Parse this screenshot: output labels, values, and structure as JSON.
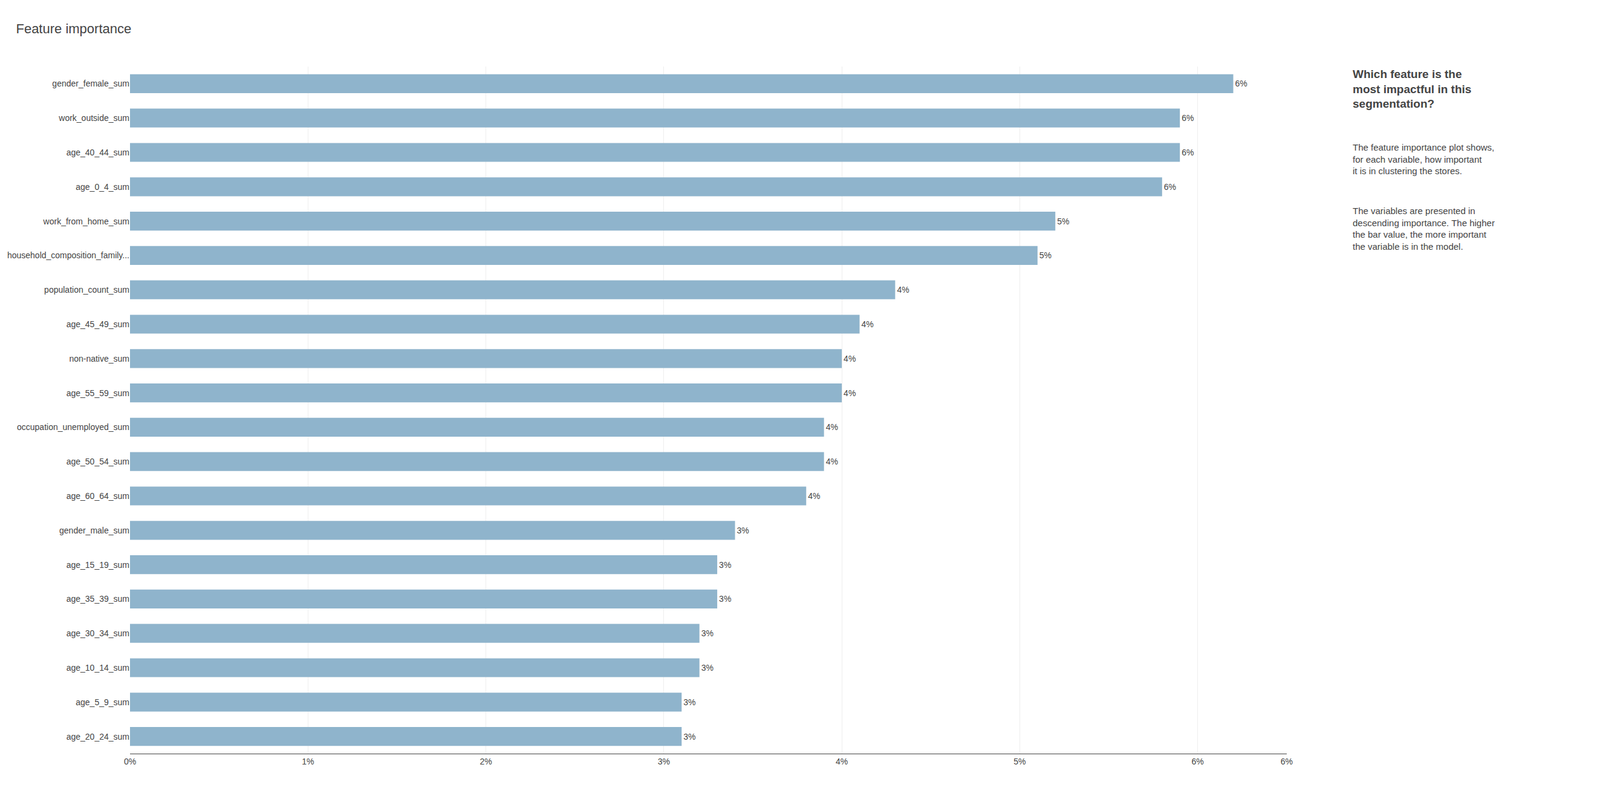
{
  "chart_data": {
    "type": "bar",
    "orientation": "horizontal",
    "title": "Feature importance",
    "categories": [
      "gender_female_sum",
      "work_outside_sum",
      "age_40_44_sum",
      "age_0_4_sum",
      "work_from_home_sum",
      "household_composition_family...",
      "population_count_sum",
      "age_45_49_sum",
      "non-native_sum",
      "age_55_59_sum",
      "occupation_unemployed_sum",
      "age_50_54_sum",
      "age_60_64_sum",
      "gender_male_sum",
      "age_15_19_sum",
      "age_35_39_sum",
      "age_30_34_sum",
      "age_10_14_sum",
      "age_5_9_sum",
      "age_20_24_sum"
    ],
    "values": [
      0.062,
      0.059,
      0.059,
      0.058,
      0.052,
      0.051,
      0.043,
      0.041,
      0.04,
      0.04,
      0.039,
      0.039,
      0.038,
      0.034,
      0.033,
      0.033,
      0.032,
      0.032,
      0.031,
      0.031
    ],
    "value_labels": [
      "6%",
      "6%",
      "6%",
      "6%",
      "5%",
      "5%",
      "4%",
      "4%",
      "4%",
      "4%",
      "4%",
      "4%",
      "4%",
      "3%",
      "3%",
      "3%",
      "3%",
      "3%",
      "3%",
      "3%"
    ],
    "data_labels": true,
    "color": "#8fb4cc",
    "xlim": [
      0.0,
      0.065
    ],
    "xticks": [
      {
        "value": 0.0,
        "label": "0%"
      },
      {
        "value": 0.01,
        "label": "1%"
      },
      {
        "value": 0.02,
        "label": "2%"
      },
      {
        "value": 0.03,
        "label": "3%"
      },
      {
        "value": 0.04,
        "label": "4%"
      },
      {
        "value": 0.05,
        "label": "5%"
      },
      {
        "value": 0.06,
        "label": "6%"
      },
      {
        "value": 0.065,
        "label": "6%"
      }
    ],
    "grid": true,
    "annotations": [
      "Which feature is the most impactful in this segmentation?",
      "The feature importance plot shows, for each variable, how important it is in clustering the stores.",
      "The variables are presented in descending importance. The higher the bar value, the more important the variable is in the model."
    ]
  }
}
